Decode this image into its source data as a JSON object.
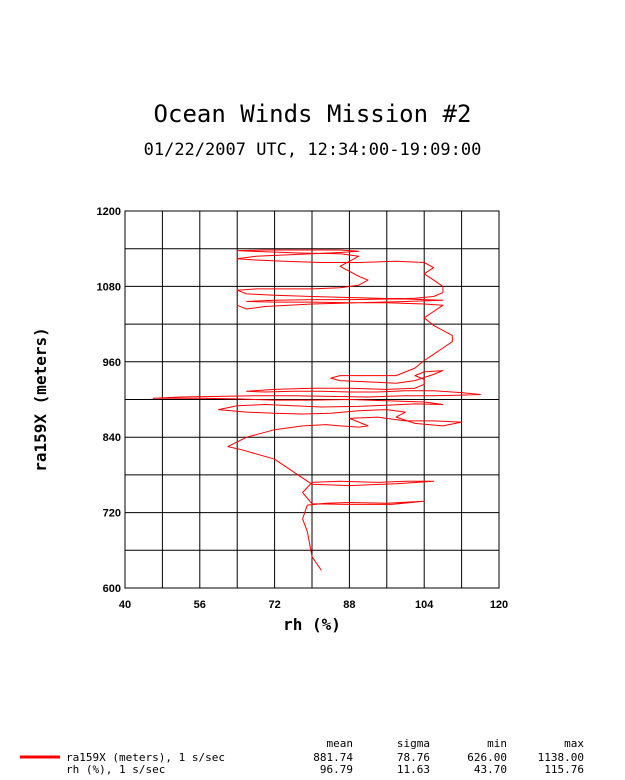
{
  "title": "Ocean Winds Mission #2",
  "subtitle": "01/22/2007  UTC, 12:34:00-19:09:00",
  "chart_data": {
    "type": "line",
    "xlabel": "rh (%)",
    "ylabel": "ra159X (meters)",
    "xlim": [
      40,
      120
    ],
    "ylim": [
      600,
      1200
    ],
    "x_ticks": [
      "40",
      "56",
      "72",
      "88",
      "104",
      "120"
    ],
    "y_ticks": [
      "600",
      "720",
      "840",
      "960",
      "1080",
      "1200"
    ],
    "grid": true,
    "series_color": "#ff0000",
    "series": [
      {
        "name": "ra159X (meters), 1 s/sec",
        "points": [
          [
            82,
            628
          ],
          [
            80,
            650
          ],
          [
            79,
            690
          ],
          [
            78,
            710
          ],
          [
            79,
            732
          ],
          [
            83,
            735
          ],
          [
            88,
            736
          ],
          [
            96,
            735
          ],
          [
            104,
            738
          ],
          [
            97,
            733
          ],
          [
            87,
            733
          ],
          [
            80,
            734
          ],
          [
            78,
            752
          ],
          [
            80,
            768
          ],
          [
            86,
            770
          ],
          [
            94,
            768
          ],
          [
            100,
            770
          ],
          [
            106,
            770
          ],
          [
            98,
            766
          ],
          [
            88,
            763
          ],
          [
            80,
            765
          ],
          [
            77,
            780
          ],
          [
            72,
            805
          ],
          [
            65,
            820
          ],
          [
            62,
            825
          ],
          [
            66,
            840
          ],
          [
            72,
            852
          ],
          [
            78,
            858
          ],
          [
            83,
            860
          ],
          [
            86,
            858
          ],
          [
            90,
            856
          ],
          [
            92,
            858
          ],
          [
            90,
            864
          ],
          [
            88,
            870
          ],
          [
            94,
            872
          ],
          [
            100,
            866
          ],
          [
            106,
            866
          ],
          [
            112,
            864
          ],
          [
            108,
            858
          ],
          [
            102,
            862
          ],
          [
            98,
            872
          ],
          [
            100,
            880
          ],
          [
            96,
            884
          ],
          [
            90,
            882
          ],
          [
            84,
            878
          ],
          [
            78,
            877
          ],
          [
            72,
            878
          ],
          [
            66,
            880
          ],
          [
            60,
            884
          ],
          [
            64,
            890
          ],
          [
            70,
            892
          ],
          [
            76,
            890
          ],
          [
            82,
            888
          ],
          [
            90,
            889
          ],
          [
            96,
            891
          ],
          [
            102,
            893
          ],
          [
            108,
            892
          ],
          [
            104,
            896
          ],
          [
            96,
            898
          ],
          [
            88,
            900
          ],
          [
            80,
            899
          ],
          [
            72,
            899
          ],
          [
            64,
            901
          ],
          [
            56,
            902
          ],
          [
            50,
            902
          ],
          [
            46,
            902
          ],
          [
            52,
            904
          ],
          [
            60,
            905
          ],
          [
            68,
            906
          ],
          [
            76,
            906
          ],
          [
            84,
            905
          ],
          [
            92,
            904
          ],
          [
            100,
            906
          ],
          [
            106,
            906
          ],
          [
            112,
            907
          ],
          [
            116,
            908
          ],
          [
            112,
            911
          ],
          [
            106,
            914
          ],
          [
            100,
            914
          ],
          [
            94,
            912
          ],
          [
            88,
            912
          ],
          [
            82,
            913
          ],
          [
            76,
            913
          ],
          [
            70,
            912
          ],
          [
            66,
            913
          ],
          [
            72,
            916
          ],
          [
            80,
            918
          ],
          [
            88,
            918
          ],
          [
            96,
            916
          ],
          [
            102,
            918
          ],
          [
            104,
            924
          ],
          [
            104,
            932
          ],
          [
            102,
            938
          ],
          [
            104,
            944
          ],
          [
            108,
            946
          ],
          [
            106,
            940
          ],
          [
            102,
            930
          ],
          [
            98,
            926
          ],
          [
            92,
            928
          ],
          [
            86,
            930
          ],
          [
            84,
            934
          ],
          [
            86,
            938
          ],
          [
            92,
            938
          ],
          [
            98,
            938
          ],
          [
            102,
            950
          ],
          [
            104,
            962
          ],
          [
            106,
            972
          ],
          [
            108,
            982
          ],
          [
            110,
            992
          ],
          [
            110,
            1002
          ],
          [
            108,
            1010
          ],
          [
            106,
            1018
          ],
          [
            104,
            1030
          ],
          [
            106,
            1040
          ],
          [
            108,
            1050
          ],
          [
            104,
            1052
          ],
          [
            96,
            1054
          ],
          [
            88,
            1054
          ],
          [
            80,
            1055
          ],
          [
            72,
            1055
          ],
          [
            66,
            1056
          ],
          [
            72,
            1058
          ],
          [
            80,
            1059
          ],
          [
            88,
            1059
          ],
          [
            96,
            1060
          ],
          [
            102,
            1061
          ],
          [
            106,
            1064
          ],
          [
            108,
            1070
          ],
          [
            108,
            1080
          ],
          [
            106,
            1090
          ],
          [
            104,
            1100
          ],
          [
            106,
            1110
          ],
          [
            104,
            1118
          ],
          [
            98,
            1120
          ],
          [
            90,
            1118
          ],
          [
            82,
            1118
          ],
          [
            74,
            1120
          ],
          [
            68,
            1122
          ],
          [
            64,
            1124
          ],
          [
            68,
            1128
          ],
          [
            74,
            1130
          ],
          [
            80,
            1132
          ],
          [
            86,
            1134
          ],
          [
            90,
            1136
          ],
          [
            86,
            1138
          ],
          [
            78,
            1138
          ],
          [
            70,
            1138
          ],
          [
            64,
            1137
          ],
          [
            70,
            1135
          ],
          [
            78,
            1133
          ],
          [
            86,
            1132
          ],
          [
            90,
            1128
          ],
          [
            88,
            1120
          ],
          [
            86,
            1112
          ],
          [
            88,
            1104
          ],
          [
            90,
            1096
          ],
          [
            92,
            1090
          ],
          [
            90,
            1082
          ],
          [
            86,
            1078
          ],
          [
            80,
            1076
          ],
          [
            74,
            1076
          ],
          [
            68,
            1076
          ],
          [
            64,
            1074
          ],
          [
            66,
            1068
          ],
          [
            72,
            1066
          ],
          [
            80,
            1064
          ],
          [
            90,
            1062
          ],
          [
            100,
            1060
          ],
          [
            108,
            1058
          ],
          [
            100,
            1056
          ],
          [
            90,
            1054
          ],
          [
            80,
            1052
          ],
          [
            70,
            1048
          ],
          [
            66,
            1044
          ],
          [
            64,
            1050
          ]
        ]
      }
    ],
    "stats_headers": [
      "mean",
      "sigma",
      "min",
      "max"
    ],
    "stats_rows": [
      {
        "label": "ra159X (meters), 1 s/sec",
        "values": [
          "881.74",
          "78.76",
          "626.00",
          "1138.00"
        ],
        "has_line": true
      },
      {
        "label": "rh (%), 1 s/sec",
        "values": [
          "96.79",
          "11.63",
          "43.70",
          "115.76"
        ],
        "has_line": false
      }
    ]
  }
}
